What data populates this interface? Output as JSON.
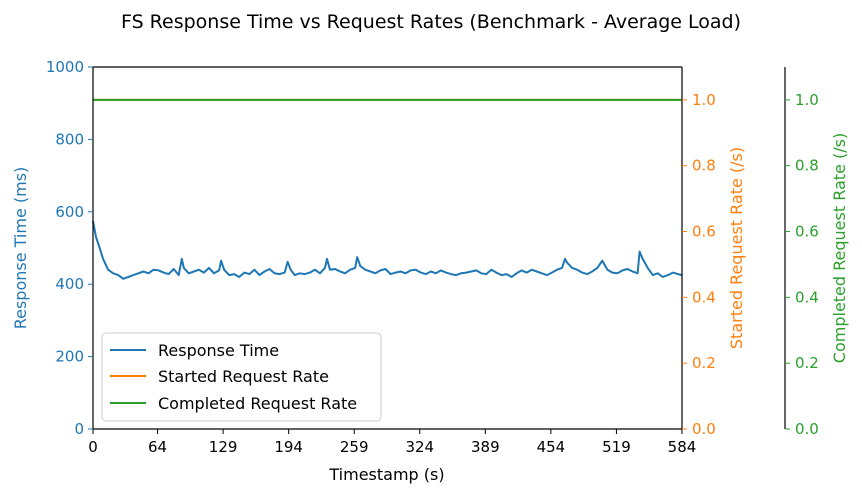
{
  "chart_data": {
    "type": "line",
    "title": "FS Response Time vs Request Rates (Benchmark - Average Load)",
    "xlabel": "Timestamp (s)",
    "xlim": [
      0,
      584
    ],
    "x_ticks": [
      0,
      64,
      129,
      194,
      259,
      324,
      389,
      454,
      519,
      584
    ],
    "axes": {
      "left": {
        "label": "Response Time (ms)",
        "ylim": [
          0,
          1000
        ],
        "ticks": [
          0,
          200,
          400,
          600,
          800,
          1000
        ],
        "color": "#1f77b4"
      },
      "right1": {
        "label": "Started Request Rate (/s)",
        "ylim": [
          0,
          1.1
        ],
        "ticks": [
          0.0,
          0.2,
          0.4,
          0.6,
          0.8,
          1.0
        ],
        "color": "#ff7f0e"
      },
      "right2": {
        "label": "Completed Request Rate (/s)",
        "ylim": [
          0,
          1.1
        ],
        "ticks": [
          0.0,
          0.2,
          0.4,
          0.6,
          0.8,
          1.0
        ],
        "color": "#2ca02c"
      }
    },
    "series": [
      {
        "name": "Response Time",
        "axis": "left",
        "color": "#1f77b4",
        "x": [
          0,
          3,
          6,
          10,
          15,
          20,
          25,
          30,
          35,
          40,
          45,
          50,
          55,
          60,
          65,
          70,
          75,
          80,
          85,
          88,
          90,
          95,
          100,
          105,
          110,
          115,
          120,
          125,
          127,
          130,
          135,
          140,
          145,
          150,
          155,
          160,
          165,
          170,
          175,
          180,
          185,
          190,
          193,
          196,
          200,
          205,
          210,
          215,
          220,
          225,
          230,
          232,
          235,
          240,
          245,
          250,
          255,
          260,
          262,
          265,
          270,
          275,
          280,
          285,
          290,
          295,
          300,
          305,
          310,
          315,
          320,
          325,
          330,
          335,
          340,
          345,
          350,
          355,
          360,
          365,
          370,
          375,
          380,
          385,
          390,
          395,
          400,
          405,
          410,
          415,
          420,
          425,
          430,
          435,
          440,
          445,
          450,
          455,
          460,
          465,
          468,
          470,
          475,
          480,
          485,
          490,
          495,
          500,
          505,
          510,
          515,
          520,
          525,
          530,
          535,
          540,
          542,
          545,
          550,
          555,
          560,
          565,
          570,
          575,
          580,
          584
        ],
        "y": [
          575,
          530,
          505,
          470,
          440,
          430,
          425,
          415,
          420,
          425,
          430,
          435,
          430,
          440,
          438,
          432,
          428,
          442,
          425,
          470,
          445,
          430,
          435,
          440,
          432,
          445,
          430,
          438,
          465,
          440,
          425,
          428,
          420,
          432,
          428,
          440,
          425,
          435,
          442,
          430,
          428,
          432,
          462,
          440,
          425,
          430,
          428,
          432,
          440,
          430,
          445,
          470,
          440,
          442,
          435,
          430,
          440,
          445,
          475,
          450,
          440,
          435,
          430,
          438,
          442,
          428,
          432,
          435,
          430,
          438,
          440,
          432,
          428,
          435,
          430,
          438,
          432,
          428,
          425,
          430,
          432,
          435,
          438,
          430,
          428,
          440,
          432,
          425,
          428,
          420,
          430,
          438,
          432,
          440,
          435,
          430,
          425,
          432,
          440,
          445,
          470,
          460,
          445,
          440,
          432,
          428,
          435,
          445,
          465,
          440,
          432,
          430,
          438,
          442,
          435,
          430,
          490,
          470,
          445,
          425,
          430,
          420,
          425,
          432,
          428,
          425
        ]
      },
      {
        "name": "Started Request Rate",
        "axis": "right1",
        "color": "#ff7f0e",
        "x": [
          0,
          584
        ],
        "y": [
          1.0,
          1.0
        ]
      },
      {
        "name": "Completed Request Rate",
        "axis": "right2",
        "color": "#2ca02c",
        "x": [
          0,
          584
        ],
        "y": [
          1.0,
          1.0
        ]
      }
    ],
    "legend": {
      "position": "lower-left",
      "entries": [
        "Response Time",
        "Started Request Rate",
        "Completed Request Rate"
      ]
    },
    "grid": false
  }
}
